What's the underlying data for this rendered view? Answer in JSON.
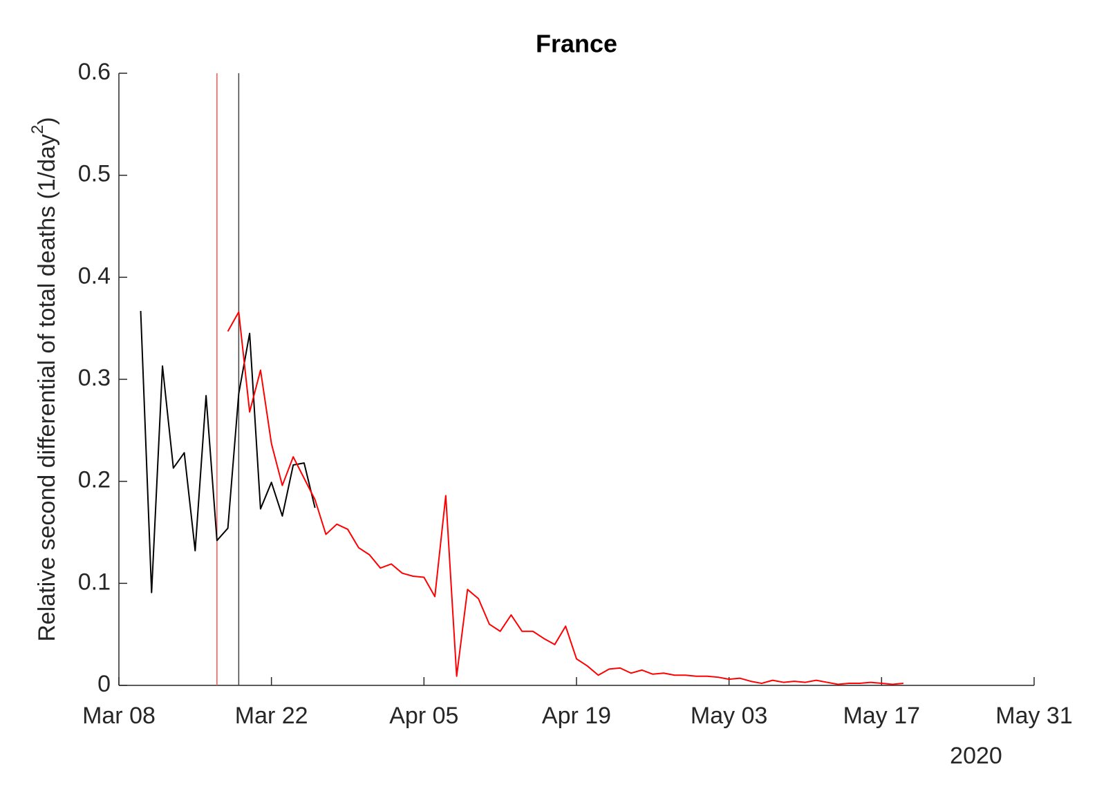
{
  "chart_data": {
    "type": "line",
    "title": "France",
    "ylabel": "Relative second differential of total deaths (1/day",
    "ylabel_superscript": "2",
    "ylabel_end": ")",
    "x_axis_year": "2020",
    "xlim": [
      "2020-03-08",
      "2020-05-31"
    ],
    "xticks": [
      {
        "value": "2020-03-08",
        "label": "Mar 08"
      },
      {
        "value": "2020-03-22",
        "label": "Mar 22"
      },
      {
        "value": "2020-04-05",
        "label": "Apr 05"
      },
      {
        "value": "2020-04-19",
        "label": "Apr 19"
      },
      {
        "value": "2020-05-03",
        "label": "May 03"
      },
      {
        "value": "2020-05-17",
        "label": "May 17"
      },
      {
        "value": "2020-05-31",
        "label": "May 31"
      }
    ],
    "ylim": [
      0,
      0.6
    ],
    "yticks": [
      0,
      0.1,
      0.2,
      0.3,
      0.4,
      0.5,
      0.6
    ],
    "vlines": [
      {
        "x": "2020-03-17",
        "color": "#ff5050"
      },
      {
        "x": "2020-03-19",
        "color": "#404040"
      }
    ],
    "series": [
      {
        "color": "#000000",
        "x": [
          "2020-03-10",
          "2020-03-11",
          "2020-03-12",
          "2020-03-13",
          "2020-03-14",
          "2020-03-15",
          "2020-03-16",
          "2020-03-17",
          "2020-03-18",
          "2020-03-19",
          "2020-03-20",
          "2020-03-21",
          "2020-03-22",
          "2020-03-23",
          "2020-03-24",
          "2020-03-25",
          "2020-03-26"
        ],
        "values": [
          0.367,
          0.091,
          0.313,
          0.213,
          0.228,
          0.132,
          0.284,
          0.142,
          0.154,
          0.286,
          0.345,
          0.173,
          0.199,
          0.166,
          0.216,
          0.218,
          0.174
        ]
      },
      {
        "color": "#ff0000",
        "x": [
          "2020-03-18",
          "2020-03-19",
          "2020-03-20",
          "2020-03-21",
          "2020-03-22",
          "2020-03-23",
          "2020-03-24",
          "2020-03-25",
          "2020-03-26",
          "2020-03-27",
          "2020-03-28",
          "2020-03-29",
          "2020-03-30",
          "2020-03-31",
          "2020-04-01",
          "2020-04-02",
          "2020-04-03",
          "2020-04-04",
          "2020-04-05",
          "2020-04-06",
          "2020-04-07",
          "2020-04-08",
          "2020-04-09",
          "2020-04-10",
          "2020-04-11",
          "2020-04-12",
          "2020-04-13",
          "2020-04-14",
          "2020-04-15",
          "2020-04-16",
          "2020-04-17",
          "2020-04-18",
          "2020-04-19",
          "2020-04-20",
          "2020-04-21",
          "2020-04-22",
          "2020-04-23",
          "2020-04-24",
          "2020-04-25",
          "2020-04-26",
          "2020-04-27",
          "2020-04-28",
          "2020-04-29",
          "2020-04-30",
          "2020-05-01",
          "2020-05-02",
          "2020-05-03",
          "2020-05-04",
          "2020-05-05",
          "2020-05-06",
          "2020-05-07",
          "2020-05-08",
          "2020-05-09",
          "2020-05-10",
          "2020-05-11",
          "2020-05-12",
          "2020-05-13",
          "2020-05-14",
          "2020-05-15",
          "2020-05-16",
          "2020-05-17",
          "2020-05-18",
          "2020-05-19"
        ],
        "values": [
          0.347,
          0.366,
          0.268,
          0.309,
          0.237,
          0.196,
          0.224,
          0.203,
          0.182,
          0.148,
          0.158,
          0.153,
          0.135,
          0.128,
          0.115,
          0.119,
          0.11,
          0.107,
          0.106,
          0.087,
          0.186,
          0.009,
          0.094,
          0.085,
          0.06,
          0.053,
          0.069,
          0.053,
          0.053,
          0.046,
          0.04,
          0.058,
          0.026,
          0.019,
          0.01,
          0.016,
          0.017,
          0.012,
          0.015,
          0.011,
          0.012,
          0.01,
          0.01,
          0.009,
          0.009,
          0.008,
          0.006,
          0.007,
          0.004,
          0.002,
          0.005,
          0.003,
          0.004,
          0.003,
          0.005,
          0.003,
          0.001,
          0.002,
          0.002,
          0.003,
          0.002,
          0.001,
          0.002
        ]
      }
    ]
  }
}
